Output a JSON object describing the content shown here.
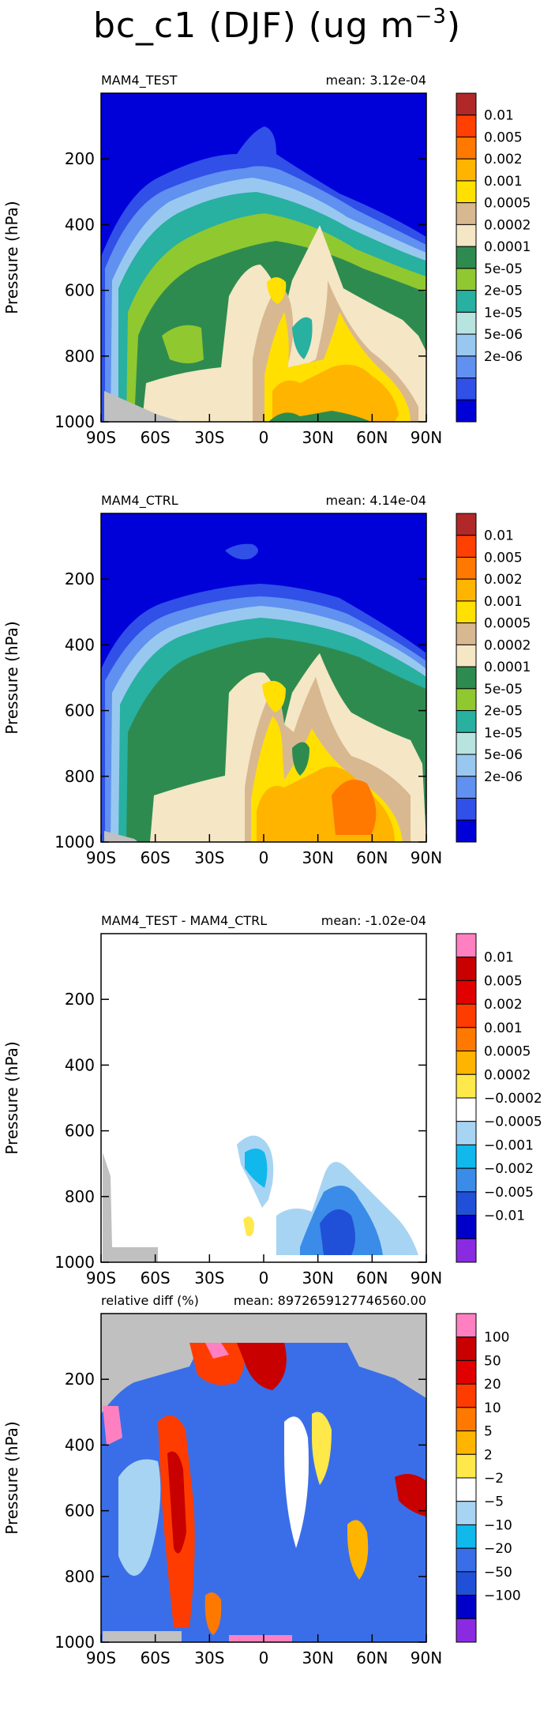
{
  "figure": {
    "title": "bc_c1 (DJF) (ug m",
    "title_exp": "−3",
    "title_close": ")"
  },
  "chart_data": [
    {
      "type": "heatmap",
      "title": "MAM4_TEST",
      "mean_label": "mean: 3.12e-04",
      "ylabel": "Pressure (hPa)",
      "x_ticks": [
        "90S",
        "60S",
        "30S",
        "0",
        "30N",
        "60N",
        "90N"
      ],
      "y_ticks": [
        "200",
        "400",
        "600",
        "800",
        "1000"
      ],
      "xlim": [
        -90,
        90
      ],
      "ylim": [
        1000,
        0
      ],
      "levels": [
        "2e-06",
        "5e-06",
        "1e-05",
        "2e-05",
        "5e-05",
        "0.0001",
        "0.0002",
        "0.0005",
        "0.001",
        "0.002",
        "0.005",
        "0.01"
      ],
      "colors": [
        "#0000d8",
        "#3050e8",
        "#6090f0",
        "#98c8f0",
        "#b8e4e0",
        "#28b0a0",
        "#90c830",
        "#2e8b50",
        "#f5e6c5",
        "#d8b890",
        "#ffe000",
        "#ffb400",
        "#ff7800",
        "#ff4000",
        "#b02828"
      ]
    },
    {
      "type": "heatmap",
      "title": "MAM4_CTRL",
      "mean_label": "mean: 4.14e-04",
      "ylabel": "Pressure (hPa)",
      "x_ticks": [
        "90S",
        "60S",
        "30S",
        "0",
        "30N",
        "60N",
        "90N"
      ],
      "y_ticks": [
        "200",
        "400",
        "600",
        "800",
        "1000"
      ],
      "xlim": [
        -90,
        90
      ],
      "ylim": [
        1000,
        0
      ],
      "levels": [
        "2e-06",
        "5e-06",
        "1e-05",
        "2e-05",
        "5e-05",
        "0.0001",
        "0.0002",
        "0.0005",
        "0.001",
        "0.002",
        "0.005",
        "0.01"
      ],
      "colors": [
        "#0000d8",
        "#3050e8",
        "#6090f0",
        "#98c8f0",
        "#b8e4e0",
        "#28b0a0",
        "#90c830",
        "#2e8b50",
        "#f5e6c5",
        "#d8b890",
        "#ffe000",
        "#ffb400",
        "#ff7800",
        "#ff4000",
        "#b02828"
      ]
    },
    {
      "type": "heatmap",
      "title": "MAM4_TEST - MAM4_CTRL",
      "mean_label": "mean: -1.02e-04",
      "ylabel": "Pressure (hPa)",
      "x_ticks": [
        "90S",
        "60S",
        "30S",
        "0",
        "30N",
        "60N",
        "90N"
      ],
      "y_ticks": [
        "200",
        "400",
        "600",
        "800",
        "1000"
      ],
      "xlim": [
        -90,
        90
      ],
      "ylim": [
        1000,
        0
      ],
      "levels": [
        "-0.01",
        "-0.005",
        "-0.002",
        "-0.001",
        "-0.0005",
        "-0.0002",
        "0.0002",
        "0.0005",
        "0.001",
        "0.002",
        "0.005",
        "0.01"
      ],
      "colors": [
        "#8a2be2",
        "#0000c8",
        "#2050d8",
        "#3a8ce8",
        "#10b8ec",
        "#a8d4f4",
        "#ffffff",
        "#ffe84a",
        "#ffb400",
        "#ff7800",
        "#ff3c00",
        "#e00000",
        "#c80000",
        "#ff80c0"
      ]
    },
    {
      "type": "heatmap",
      "title": "relative diff (%)",
      "mean_label": "mean: 8972659127746560.00",
      "ylabel": "Pressure (hPa)",
      "x_ticks": [
        "90S",
        "60S",
        "30S",
        "0",
        "30N",
        "60N",
        "90N"
      ],
      "y_ticks": [
        "200",
        "400",
        "600",
        "800",
        "1000"
      ],
      "xlim": [
        -90,
        90
      ],
      "ylim": [
        1000,
        0
      ],
      "levels": [
        "-100",
        "-50",
        "-20",
        "-10",
        "-5",
        "-2",
        "2",
        "5",
        "10",
        "20",
        "50",
        "100"
      ],
      "colors": [
        "#8a2be2",
        "#0000c8",
        "#2050d8",
        "#3a6ee8",
        "#10b8ec",
        "#a8d4f4",
        "#ffffff",
        "#ffe84a",
        "#ffb400",
        "#ff7800",
        "#ff3c00",
        "#e00000",
        "#c80000",
        "#ff80c0"
      ]
    }
  ]
}
